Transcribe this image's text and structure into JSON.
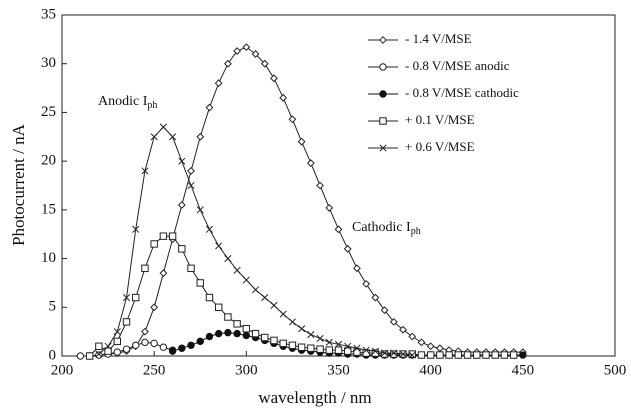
{
  "chart_data": {
    "type": "line",
    "xlabel": "wavelength / nm",
    "ylabel": "Photocurrent / nA",
    "xlim": [
      200,
      500
    ],
    "xticks": [
      200,
      250,
      300,
      350,
      400,
      450,
      500
    ],
    "ylim": [
      0,
      35
    ],
    "yticks": [
      0,
      5,
      10,
      15,
      20,
      25,
      30,
      35
    ],
    "legend": "upper right",
    "annotations": [
      {
        "text": "Anodic I",
        "subscript": "ph"
      },
      {
        "text": "Cathodic I",
        "subscript": "ph"
      }
    ],
    "x": [
      210,
      215,
      220,
      225,
      230,
      235,
      240,
      245,
      250,
      255,
      260,
      265,
      270,
      275,
      280,
      285,
      290,
      295,
      300,
      305,
      310,
      315,
      320,
      325,
      330,
      335,
      340,
      345,
      350,
      355,
      360,
      365,
      370,
      375,
      380,
      385,
      390,
      395,
      400,
      405,
      410,
      415,
      420,
      425,
      430,
      435,
      440,
      445,
      450
    ],
    "series": [
      {
        "name": "- 1.4 V/MSE",
        "color": "#222",
        "marker": "diamond",
        "filled": false,
        "values": [
          null,
          0,
          0.1,
          0.2,
          0.3,
          0.5,
          1,
          2.5,
          5,
          8.5,
          12,
          15.5,
          19,
          22.5,
          25.5,
          28,
          30,
          31.3,
          31.7,
          31,
          30,
          28.5,
          26.5,
          24.3,
          22,
          19.8,
          17.5,
          15.2,
          13,
          11,
          9,
          7.4,
          6,
          4.7,
          3.5,
          2.7,
          2,
          1.4,
          1,
          0.8,
          0.6,
          0.5,
          0.4,
          0.4,
          0.4,
          0.4,
          0.4,
          0.4,
          0.4
        ]
      },
      {
        "name": "- 0.8 V/MSE anodic",
        "color": "#222",
        "marker": "circle",
        "filled": false,
        "values": [
          0,
          0,
          0.1,
          0.2,
          0.4,
          0.7,
          1.1,
          1.4,
          1.3,
          0.9,
          0.6,
          null,
          null,
          null,
          null,
          null,
          null,
          null,
          null,
          null,
          null,
          null,
          null,
          null,
          null,
          null,
          null,
          null,
          null,
          null,
          null,
          null,
          null,
          null,
          null,
          null,
          null,
          null,
          null,
          null,
          null,
          null,
          null,
          null,
          null,
          null,
          null,
          null,
          null
        ]
      },
      {
        "name": "- 0.8 V/MSE cathodic",
        "color": "#111",
        "marker": "circle",
        "filled": true,
        "values": [
          null,
          null,
          null,
          null,
          null,
          null,
          null,
          null,
          null,
          null,
          0.5,
          0.8,
          1.1,
          1.5,
          2,
          2.3,
          2.4,
          2.3,
          2.1,
          1.9,
          1.6,
          1.3,
          1,
          0.8,
          0.6,
          0.5,
          0.4,
          0.3,
          0.3,
          0.2,
          0.2,
          0.1,
          0.1,
          0.1,
          0.1,
          0.1,
          0.1,
          0.1,
          0.1,
          0.1,
          0.1,
          0.1,
          0.1,
          0.1,
          0.1,
          0.1,
          0.1,
          0.1,
          0.1
        ]
      },
      {
        "name": "+ 0.1 V/MSE",
        "color": "#222",
        "marker": "square",
        "filled": false,
        "values": [
          null,
          0,
          1,
          0.5,
          1.5,
          3.5,
          6,
          9,
          11.5,
          12.3,
          12.3,
          11,
          9,
          7.5,
          6,
          5,
          4,
          3.3,
          2.8,
          2.3,
          1.9,
          1.6,
          1.3,
          1.1,
          0.9,
          0.8,
          0.7,
          0.6,
          0.6,
          0.5,
          0.4,
          0.3,
          0.3,
          0.2,
          0.2,
          0.2,
          0.2,
          0.1,
          0.1,
          0.1,
          0.1,
          0.1,
          0.1,
          0.1,
          0.1,
          0.1,
          0.1,
          0.1,
          null
        ]
      },
      {
        "name": "+ 0.6 V/MSE",
        "color": "#222",
        "marker": "x",
        "filled": false,
        "values": [
          null,
          null,
          0.2,
          1,
          2.5,
          6,
          13,
          19,
          22.5,
          23.5,
          22.5,
          20,
          17.5,
          15,
          13,
          11.3,
          10,
          8.8,
          7.8,
          6.8,
          6,
          5.2,
          4.3,
          3.5,
          2.8,
          2.2,
          1.8,
          1.4,
          1.2,
          1,
          0.8,
          0.6,
          0.5,
          0.3,
          0.3,
          0.2,
          0.1,
          null,
          null,
          null,
          null,
          null,
          null,
          null,
          null,
          null,
          null,
          null,
          null
        ]
      }
    ]
  }
}
